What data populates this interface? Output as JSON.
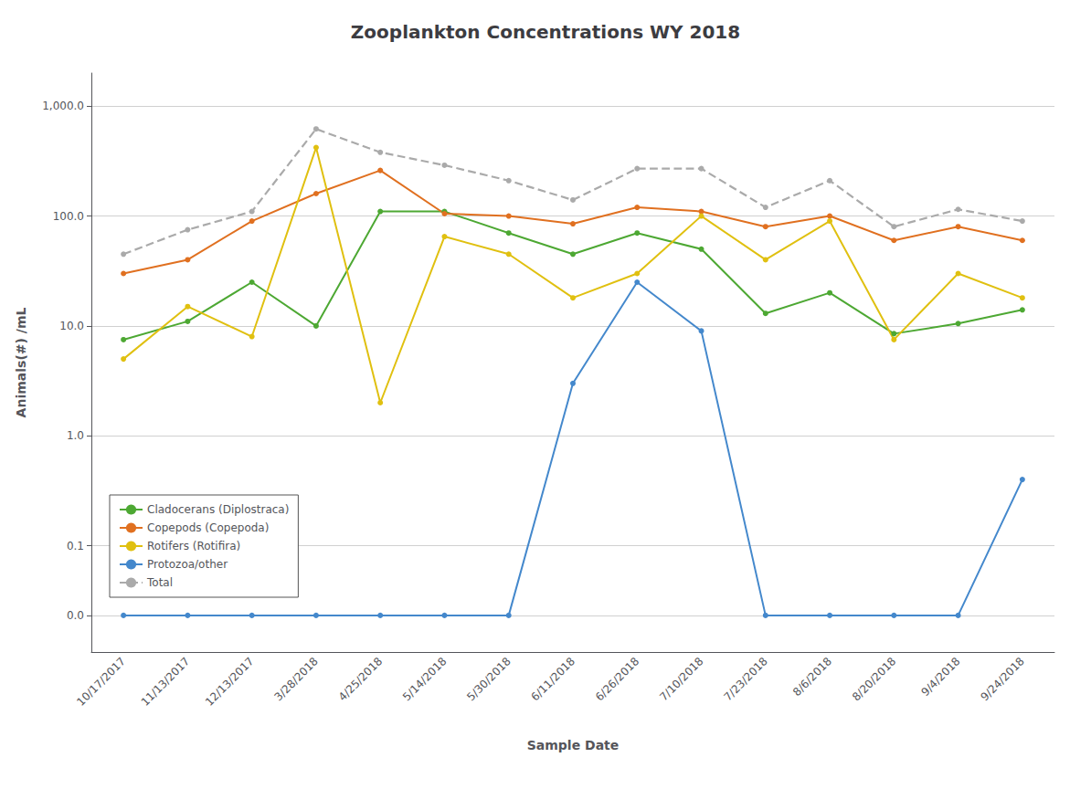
{
  "chart_data": {
    "type": "line",
    "title": "Zooplankton Concentrations WY 2018",
    "xlabel": "Sample Date",
    "ylabel": "Animals(#) /mL",
    "categories": [
      "10/17/2017",
      "11/13/2017",
      "12/13/2017",
      "3/28/2018",
      "4/25/2018",
      "5/14/2018",
      "5/30/2018",
      "6/11/2018",
      "6/26/2018",
      "7/10/2018",
      "7/23/2018",
      "8/6/2018",
      "8/20/2018",
      "9/4/2018",
      "9/24/2018"
    ],
    "series": [
      {
        "name": "Cladocerans (Diplostraca)",
        "color": "#4da833",
        "marker": "circle",
        "line_style": "solid",
        "values": [
          7.5,
          11.0,
          25.0,
          10.0,
          110.0,
          110.0,
          70.0,
          45.0,
          70.0,
          50.0,
          13.0,
          20.0,
          8.5,
          10.5,
          14.0
        ]
      },
      {
        "name": "Copepods (Copepoda)",
        "color": "#e07020",
        "marker": "circle",
        "line_style": "solid",
        "values": [
          30.0,
          40.0,
          90.0,
          160.0,
          260.0,
          105.0,
          100.0,
          85.0,
          120.0,
          110.0,
          80.0,
          100.0,
          60.0,
          80.0,
          60.0
        ]
      },
      {
        "name": "Rotifers (Rotifira)",
        "color": "#e0c010",
        "marker": "circle",
        "line_style": "solid",
        "values": [
          5.0,
          15.0,
          8.0,
          420.0,
          2.0,
          65.0,
          45.0,
          18.0,
          30.0,
          100.0,
          40.0,
          90.0,
          7.5,
          30.0,
          18.0
        ]
      },
      {
        "name": "Protozoa/other",
        "color": "#4488cc",
        "marker": "circle",
        "line_style": "solid",
        "values": [
          0.0,
          0.0,
          0.0,
          0.0,
          0.0,
          0.0,
          0.0,
          3.0,
          25.0,
          9.0,
          0.0,
          0.0,
          0.0,
          0.0,
          0.4
        ]
      },
      {
        "name": "Total",
        "color": "#aaaaaa",
        "marker": "circle",
        "line_style": "dashed",
        "values": [
          45.0,
          75.0,
          110.0,
          620.0,
          380.0,
          290.0,
          210.0,
          140.0,
          270.0,
          270.0,
          120.0,
          210.0,
          80.0,
          115.0,
          90.0
        ]
      }
    ],
    "log": "y",
    "ylim": [
      -0.05,
      2000
    ],
    "yticks": [
      {
        "value": 0,
        "label": "0.0"
      },
      {
        "value": 0.1,
        "label": "0.1"
      },
      {
        "value": 1,
        "label": "1.0"
      },
      {
        "value": 10,
        "label": "10.0"
      },
      {
        "value": 100,
        "label": "100.0"
      },
      {
        "value": 1000,
        "label": "1,000.0"
      }
    ],
    "grid": true,
    "legend": "lower left"
  }
}
